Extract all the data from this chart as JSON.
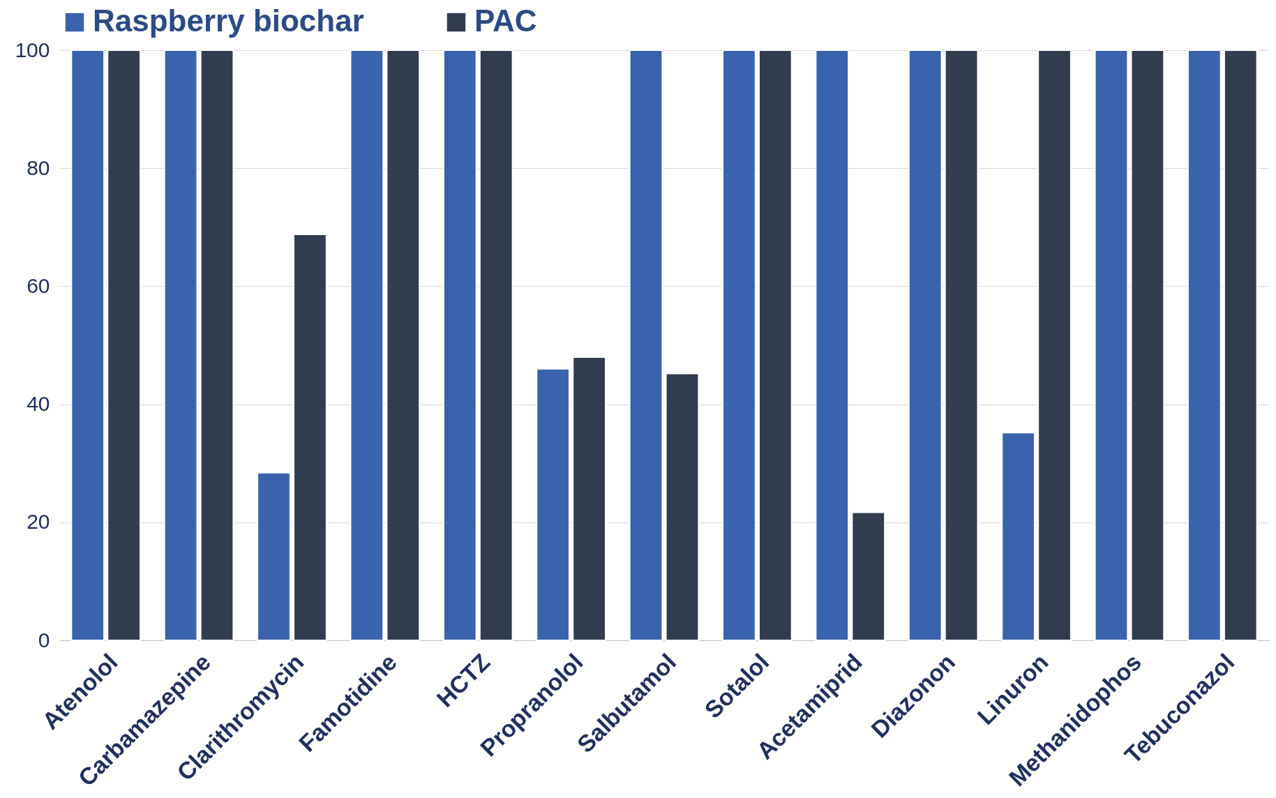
{
  "chart_data": {
    "type": "bar",
    "categories": [
      "Atenolol",
      "Carbamazepine",
      "Clarithromycin",
      "Famotidine",
      "HCTZ",
      "Propranolol",
      "Salbutamol",
      "Sotalol",
      "Acetamiprid",
      "Diazonon",
      "Linuron",
      "Methanidophos",
      "Tebuconazol"
    ],
    "series": [
      {
        "name": "Raspberry biochar",
        "color": "#3a63ad",
        "values": [
          100,
          100,
          28.4,
          100,
          100,
          46,
          100,
          100,
          100,
          100,
          35.2,
          100,
          100
        ]
      },
      {
        "name": "PAC",
        "color": "#323c4f",
        "values": [
          100,
          100,
          68.8,
          100,
          100,
          48,
          45.2,
          100,
          21.7,
          100,
          100,
          100,
          100
        ]
      }
    ],
    "ylim": [
      0,
      100
    ],
    "yticks": [
      0,
      20,
      40,
      60,
      80,
      100
    ],
    "grid": "y",
    "legend": "top"
  }
}
